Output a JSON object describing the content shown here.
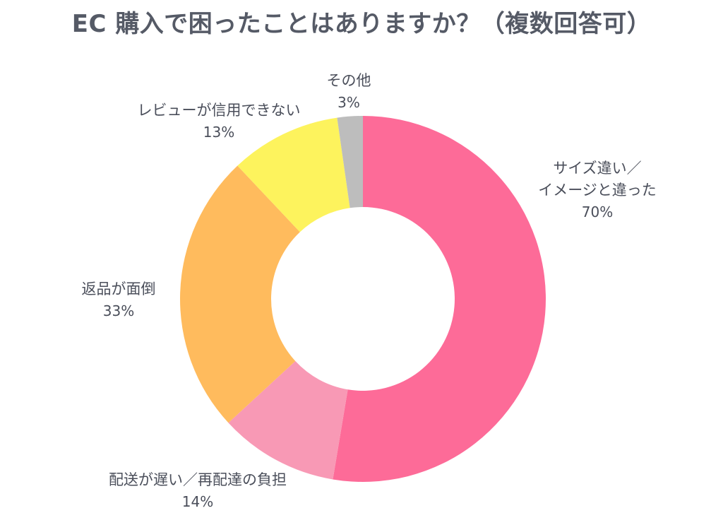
{
  "chart_data": {
    "type": "pie",
    "title": "EC 購入で困ったことはありますか？（複数回答可）",
    "donut": true,
    "slices": [
      {
        "label_lines": [
          "サイズ違い／",
          "イメージと違った"
        ],
        "value_label": "70%",
        "value": 70,
        "color": "#fd6b98"
      },
      {
        "label_lines": [
          "配送が遅い／再配達の負担"
        ],
        "value_label": "14%",
        "value": 14,
        "color": "#f899b5"
      },
      {
        "label_lines": [
          "返品が面倒"
        ],
        "value_label": "33%",
        "value": 33,
        "color": "#ffbb5d"
      },
      {
        "label_lines": [
          "レビューが信用できない"
        ],
        "value_label": "13%",
        "value": 13,
        "color": "#fdf35d"
      },
      {
        "label_lines": [
          "その他"
        ],
        "value_label": "3%",
        "value": 3,
        "color": "#bdbdbd"
      }
    ]
  }
}
